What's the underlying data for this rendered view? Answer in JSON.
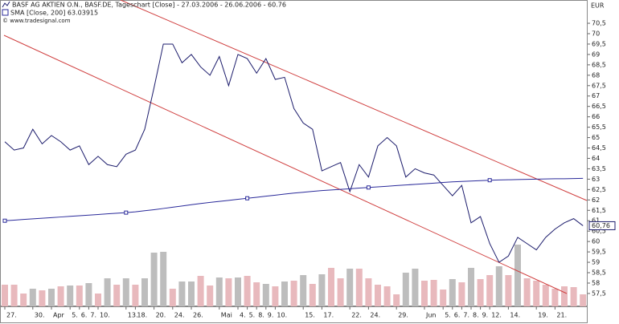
{
  "chart_data": {
    "type": "line",
    "title": "BASF AG AKTIEN O.N., BASF.DE, Tageschart [Close] - 27.03.2006 - 26.06.2006 - 60.76",
    "subtitle": "SMA [Close, 200] 63.03915",
    "credit": "© www.tradesignal.com",
    "y_axis_label": "EUR",
    "last_price_label": "60,76",
    "categories": [
      "27.",
      null,
      null,
      "30.",
      null,
      "Apr",
      null,
      "5.",
      "6.",
      "7.",
      "10.",
      null,
      null,
      "13.",
      "18.",
      null,
      "20.",
      null,
      "24.",
      null,
      "26.",
      null,
      null,
      "Mai",
      null,
      "4.",
      "5.",
      "8.",
      "9.",
      "10.",
      null,
      null,
      "15.",
      null,
      "17.",
      null,
      null,
      "22.",
      null,
      "24.",
      null,
      null,
      "29.",
      null,
      null,
      "Jun",
      null,
      "5.",
      "6.",
      "7.",
      "8.",
      "9.",
      "12.",
      null,
      "14.",
      null,
      null,
      "19.",
      null,
      "21.",
      null,
      null,
      null
    ],
    "series": [
      {
        "name": "Close",
        "color": "#1c1c6c",
        "values": [
          64.8,
          64.4,
          64.5,
          65.4,
          64.7,
          65.1,
          64.8,
          64.4,
          64.6,
          63.7,
          64.1,
          63.7,
          63.6,
          64.2,
          64.4,
          65.4,
          67.4,
          69.5,
          69.5,
          68.6,
          69.0,
          68.4,
          68.0,
          68.9,
          67.5,
          69.0,
          68.8,
          68.1,
          68.8,
          67.8,
          67.9,
          66.4,
          65.7,
          65.4,
          63.4,
          63.6,
          63.8,
          62.4,
          63.7,
          63.1,
          64.6,
          65.0,
          64.6,
          63.1,
          63.5,
          63.3,
          63.2,
          62.7,
          62.2,
          62.7,
          60.9,
          61.2,
          59.9,
          59.0,
          59.3,
          60.2,
          59.9,
          59.6,
          60.2,
          60.6,
          60.9,
          61.1,
          60.76
        ]
      },
      {
        "name": "SMA",
        "color": "#2a2a9a",
        "values": [
          61.0,
          61.03,
          61.06,
          61.09,
          61.12,
          61.15,
          61.18,
          61.21,
          61.24,
          61.27,
          61.3,
          61.33,
          61.36,
          61.39,
          61.43,
          61.48,
          61.53,
          61.59,
          61.65,
          61.71,
          61.77,
          61.83,
          61.88,
          61.93,
          61.98,
          62.03,
          62.08,
          62.13,
          62.18,
          62.23,
          62.28,
          62.33,
          62.37,
          62.41,
          62.45,
          62.48,
          62.51,
          62.54,
          62.57,
          62.6,
          62.63,
          62.66,
          62.69,
          62.72,
          62.75,
          62.78,
          62.81,
          62.84,
          62.87,
          62.89,
          62.91,
          62.93,
          62.95,
          62.96,
          62.97,
          62.98,
          62.99,
          63.0,
          63.01,
          63.02,
          63.02,
          63.03,
          63.04
        ]
      }
    ],
    "volume": {
      "values": [
        27,
        27,
        16,
        22,
        20,
        22,
        25,
        26,
        26,
        29,
        16,
        35,
        27,
        35,
        27,
        35,
        67,
        68,
        22,
        31,
        31,
        38,
        26,
        36,
        35,
        36,
        38,
        30,
        28,
        25,
        31,
        32,
        39,
        28,
        40,
        48,
        35,
        47,
        47,
        35,
        27,
        25,
        15,
        42,
        47,
        32,
        33,
        21,
        34,
        30,
        48,
        34,
        39,
        50,
        39,
        77,
        35,
        32,
        27,
        22,
        25,
        24,
        15
      ],
      "colors": [
        "#e8b9bd",
        "#e8b9bd",
        "#e8b9bd",
        "#bdbdbd",
        "#e8b9bd",
        "#bdbdbd",
        "#e8b9bd",
        "#bdbdbd",
        "#e8b9bd",
        "#bdbdbd",
        "#e8b9bd",
        "#bdbdbd",
        "#e8b9bd",
        "#bdbdbd",
        "#e8b9bd",
        "#bdbdbd",
        "#bdbdbd",
        "#bdbdbd",
        "#e8b9bd",
        "#bdbdbd",
        "#bdbdbd",
        "#e8b9bd",
        "#e8b9bd",
        "#bdbdbd",
        "#e8b9bd",
        "#bdbdbd",
        "#e8b9bd",
        "#e8b9bd",
        "#bdbdbd",
        "#e8b9bd",
        "#bdbdbd",
        "#e8b9bd",
        "#bdbdbd",
        "#e8b9bd",
        "#bdbdbd",
        "#e8b9bd",
        "#e8b9bd",
        "#bdbdbd",
        "#e8b9bd",
        "#e8b9bd",
        "#e8b9bd",
        "#e8b9bd",
        "#e8b9bd",
        "#bdbdbd",
        "#bdbdbd",
        "#e8b9bd",
        "#e8b9bd",
        "#e8b9bd",
        "#bdbdbd",
        "#e8b9bd",
        "#bdbdbd",
        "#e8b9bd",
        "#e8b9bd",
        "#bdbdbd",
        "#e8b9bd",
        "#bdbdbd",
        "#e8b9bd",
        "#e8b9bd",
        "#e8b9bd",
        "#e8b9bd",
        "#e8b9bd",
        "#e8b9bd",
        "#e8b9bd"
      ]
    },
    "ylim": [
      56.88,
      71.62
    ],
    "yticks": [
      {
        "value": 57.5,
        "label": "57,5"
      },
      58,
      {
        "value": 58.5,
        "label": "58,5"
      },
      59,
      {
        "value": 59.5,
        "label": "59,5"
      },
      60,
      {
        "value": 60.5,
        "label": "60,5"
      },
      61,
      {
        "value": 61.5,
        "label": "61,5"
      },
      62,
      {
        "value": 62.5,
        "label": "62,5"
      },
      63,
      {
        "value": 63.5,
        "label": "63,5"
      },
      64,
      {
        "value": 64.5,
        "label": "64,5"
      },
      65,
      {
        "value": 65.5,
        "label": "65,5"
      },
      66,
      {
        "value": 66.5,
        "label": "66,5"
      },
      67,
      {
        "value": 67.5,
        "label": "67,5"
      },
      68,
      {
        "value": 68.5,
        "label": "68,5"
      },
      69,
      {
        "value": 69.5,
        "label": "69,5"
      },
      70,
      {
        "value": 70.5,
        "label": "70,5"
      }
    ],
    "sma_marker_every": 13
  }
}
